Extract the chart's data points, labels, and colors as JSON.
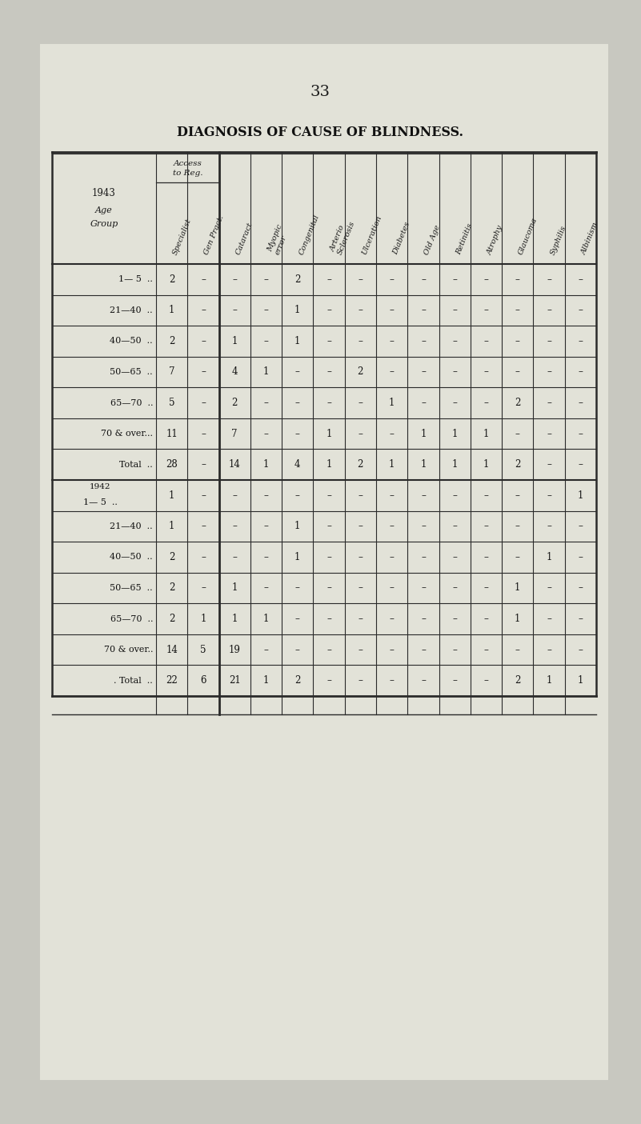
{
  "page_number": "33",
  "title": "DIAGNOSIS OF CAUSE OF BLINDNESS.",
  "bg_color": "#c8c8c0",
  "paper_color": "#e2e2d8",
  "rows_1943": [
    [
      "1— 5  ..",
      "2",
      "–",
      "–",
      "–",
      "2",
      "–",
      "–",
      "–",
      "–",
      "–",
      "–",
      "–",
      "–",
      "–"
    ],
    [
      "21—40  ..",
      "1",
      "–",
      "–",
      "–",
      "1",
      "–",
      "–",
      "–",
      "–",
      "–",
      "–",
      "–",
      "–",
      "–"
    ],
    [
      "40—50  ..",
      "2",
      "–",
      "1",
      "–",
      "1",
      "–",
      "–",
      "–",
      "–",
      "–",
      "–",
      "–",
      "–",
      "–"
    ],
    [
      "50—65  ..",
      "7",
      "–",
      "4",
      "1",
      "–",
      "–",
      "2",
      "–",
      "–",
      "–",
      "–",
      "–",
      "–",
      "–"
    ],
    [
      "65—70  ..",
      "5",
      "–",
      "2",
      "–",
      "–",
      "–",
      "–",
      "1",
      "–",
      "–",
      "–",
      "2",
      "–",
      "–"
    ],
    [
      "70 & over...",
      "11",
      "–",
      "7",
      "–",
      "–",
      "1",
      "–",
      "–",
      "1",
      "1",
      "1",
      "–",
      "–",
      "–"
    ],
    [
      "Total  ..",
      "28",
      "–",
      "14",
      "1",
      "4",
      "1",
      "2",
      "1",
      "1",
      "1",
      "1",
      "2",
      "–",
      "–"
    ]
  ],
  "rows_1942": [
    [
      "1— 5  ..",
      "1",
      "–",
      "–",
      "–",
      "–",
      "–",
      "–",
      "–",
      "–",
      "–",
      "–",
      "–",
      "–",
      "1"
    ],
    [
      "21—40  ..",
      "1",
      "–",
      "–",
      "–",
      "1",
      "–",
      "–",
      "–",
      "–",
      "–",
      "–",
      "–",
      "–",
      "–"
    ],
    [
      "40—50  ..",
      "2",
      "–",
      "–",
      "–",
      "1",
      "–",
      "–",
      "–",
      "–",
      "–",
      "–",
      "–",
      "1",
      "–"
    ],
    [
      "50—65  ..",
      "2",
      "–",
      "1",
      "–",
      "–",
      "–",
      "–",
      "–",
      "–",
      "–",
      "–",
      "1",
      "–",
      "–"
    ],
    [
      "65—70  ..",
      "2",
      "1",
      "1",
      "1",
      "–",
      "–",
      "–",
      "–",
      "–",
      "–",
      "–",
      "1",
      "–",
      "–"
    ],
    [
      "70 & over..",
      "14",
      "5",
      "19",
      "–",
      "–",
      "–",
      "–",
      "–",
      "–",
      "–",
      "–",
      "–",
      "–",
      "–"
    ],
    [
      ". Total  ..",
      "22",
      "6",
      "21",
      "1",
      "2",
      "–",
      "–",
      "–",
      "–",
      "–",
      "–",
      "2",
      "1",
      "1"
    ]
  ],
  "col_headers": [
    "Specialist",
    "Gen Pract.",
    "Cataract",
    "Myopic\nerror",
    "Congenital",
    "Arterio\nSclerosis",
    "Ulceration",
    "Diabetes",
    "Old Age",
    "Retinitis",
    "Atrophy",
    "Glaucoma",
    "Syphilis",
    "Albinism"
  ]
}
